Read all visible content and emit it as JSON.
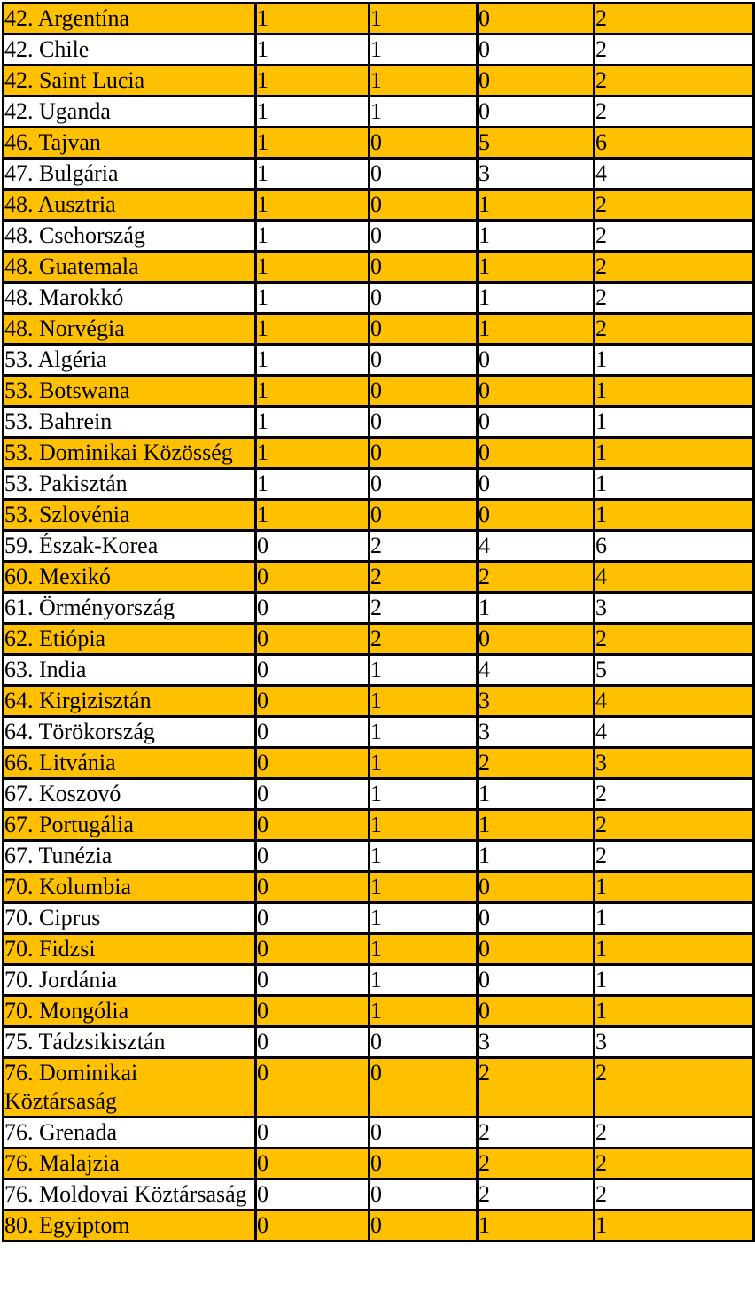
{
  "colors": {
    "highlight_row": "#FFC000",
    "plain_row": "#FFFFFF",
    "grid_border": "#000000",
    "text": "#000000",
    "page_background": "#FFFFFF"
  },
  "table": {
    "rows": [
      {
        "label": "42. Argentína",
        "values": [
          "1",
          "1",
          "0",
          "2"
        ],
        "highlighted": true
      },
      {
        "label": "42. Chile",
        "values": [
          "1",
          "1",
          "0",
          "2"
        ],
        "highlighted": false
      },
      {
        "label": "42. Saint Lucia",
        "values": [
          "1",
          "1",
          "0",
          "2"
        ],
        "highlighted": true
      },
      {
        "label": "42. Uganda",
        "values": [
          "1",
          "1",
          "0",
          "2"
        ],
        "highlighted": false
      },
      {
        "label": "46. Tajvan",
        "values": [
          "1",
          "0",
          "5",
          "6"
        ],
        "highlighted": true
      },
      {
        "label": "47. Bulgária",
        "values": [
          "1",
          "0",
          "3",
          "4"
        ],
        "highlighted": false
      },
      {
        "label": "48. Ausztria",
        "values": [
          "1",
          "0",
          "1",
          "2"
        ],
        "highlighted": true
      },
      {
        "label": "48. Csehország",
        "values": [
          "1",
          "0",
          "1",
          "2"
        ],
        "highlighted": false
      },
      {
        "label": "48. Guatemala",
        "values": [
          "1",
          "0",
          "1",
          "2"
        ],
        "highlighted": true
      },
      {
        "label": "48. Marokkó",
        "values": [
          "1",
          "0",
          "1",
          "2"
        ],
        "highlighted": false
      },
      {
        "label": "48. Norvégia",
        "values": [
          "1",
          "0",
          "1",
          "2"
        ],
        "highlighted": true
      },
      {
        "label": "53. Algéria",
        "values": [
          "1",
          "0",
          "0",
          "1"
        ],
        "highlighted": false
      },
      {
        "label": "53. Botswana",
        "values": [
          "1",
          "0",
          "0",
          "1"
        ],
        "highlighted": true
      },
      {
        "label": "53. Bahrein",
        "values": [
          "1",
          "0",
          "0",
          "1"
        ],
        "highlighted": false
      },
      {
        "label": "53. Dominikai Közösség",
        "values": [
          "1",
          "0",
          "0",
          "1"
        ],
        "highlighted": true
      },
      {
        "label": "53. Pakisztán",
        "values": [
          "1",
          "0",
          "0",
          "1"
        ],
        "highlighted": false
      },
      {
        "label": "53. Szlovénia",
        "values": [
          "1",
          "0",
          "0",
          "1"
        ],
        "highlighted": true
      },
      {
        "label": "59. Észak-Korea",
        "values": [
          "0",
          "2",
          "4",
          "6"
        ],
        "highlighted": false
      },
      {
        "label": "60. Mexikó",
        "values": [
          "0",
          "2",
          "2",
          "4"
        ],
        "highlighted": true
      },
      {
        "label": "61. Örményország",
        "values": [
          "0",
          "2",
          "1",
          "3"
        ],
        "highlighted": false
      },
      {
        "label": "62. Etiópia",
        "values": [
          "0",
          "2",
          "0",
          "2"
        ],
        "highlighted": true
      },
      {
        "label": "63. India",
        "values": [
          "0",
          "1",
          "4",
          "5"
        ],
        "highlighted": false
      },
      {
        "label": "64. Kirgizisztán",
        "values": [
          "0",
          "1",
          "3",
          "4"
        ],
        "highlighted": true
      },
      {
        "label": "64. Törökország",
        "values": [
          "0",
          "1",
          "3",
          "4"
        ],
        "highlighted": false
      },
      {
        "label": "66. Litvánia",
        "values": [
          "0",
          "1",
          "2",
          "3"
        ],
        "highlighted": true
      },
      {
        "label": "67. Koszovó",
        "values": [
          "0",
          "1",
          "1",
          "2"
        ],
        "highlighted": false
      },
      {
        "label": "67. Portugália",
        "values": [
          "0",
          "1",
          "1",
          "2"
        ],
        "highlighted": true
      },
      {
        "label": "67. Tunézia",
        "values": [
          "0",
          "1",
          "1",
          "2"
        ],
        "highlighted": false
      },
      {
        "label": "70. Kolumbia",
        "values": [
          "0",
          "1",
          "0",
          "1"
        ],
        "highlighted": true
      },
      {
        "label": "70. Ciprus",
        "values": [
          "0",
          "1",
          "0",
          "1"
        ],
        "highlighted": false
      },
      {
        "label": "70. Fidzsi",
        "values": [
          "0",
          "1",
          "0",
          "1"
        ],
        "highlighted": true
      },
      {
        "label": "70. Jordánia",
        "values": [
          "0",
          "1",
          "0",
          "1"
        ],
        "highlighted": false
      },
      {
        "label": "70. Mongólia",
        "values": [
          "0",
          "1",
          "0",
          "1"
        ],
        "highlighted": true
      },
      {
        "label": "75. Tádzsikisztán",
        "values": [
          "0",
          "0",
          "3",
          "3"
        ],
        "highlighted": false
      },
      {
        "label": "76. Dominikai Köztársaság",
        "values": [
          "0",
          "0",
          "2",
          "2"
        ],
        "highlighted": true
      },
      {
        "label": "76. Grenada",
        "values": [
          "0",
          "0",
          "2",
          "2"
        ],
        "highlighted": false
      },
      {
        "label": "76. Malajzia",
        "values": [
          "0",
          "0",
          "2",
          "2"
        ],
        "highlighted": true
      },
      {
        "label": "76. Moldovai Köztársaság",
        "values": [
          "0",
          "0",
          "2",
          "2"
        ],
        "highlighted": false
      },
      {
        "label": "80. Egyiptom",
        "values": [
          "0",
          "0",
          "1",
          "1"
        ],
        "highlighted": true
      }
    ]
  }
}
